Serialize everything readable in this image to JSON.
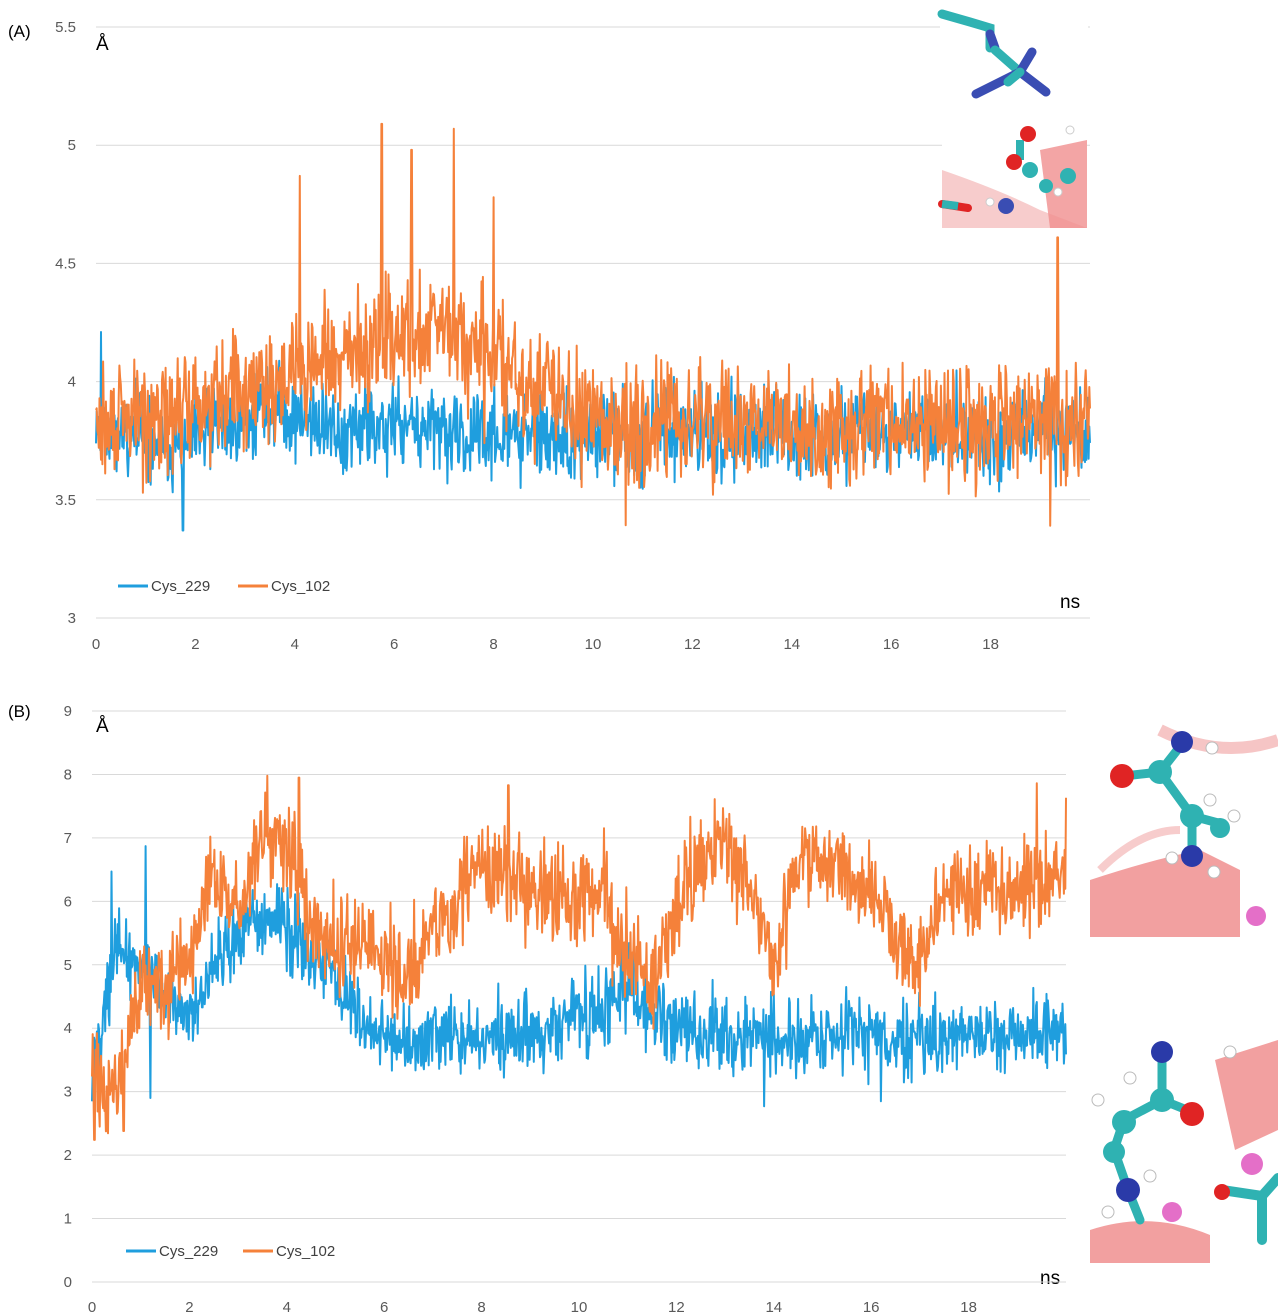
{
  "colors": {
    "cys_229": "#1f9ede",
    "cys_102": "#f5813a",
    "grid": "#d9d9d9",
    "tick": "#595959"
  },
  "chart_data": [
    {
      "type": "line",
      "panel_label": "(A)",
      "ylabel": "Å",
      "xlabel": "ns",
      "ylim": [
        3,
        5.5
      ],
      "xlim": [
        0,
        20
      ],
      "yticks": [
        "3",
        "3.5",
        "4",
        "4.5",
        "5",
        "5.5"
      ],
      "xticks": [
        "0",
        "2",
        "4",
        "6",
        "8",
        "10",
        "12",
        "14",
        "16",
        "18"
      ],
      "grid": "horizontal",
      "legend": "bottom-left",
      "x": [
        0,
        0.5,
        1,
        1.5,
        2,
        2.5,
        3,
        3.5,
        4,
        4.5,
        5,
        5.5,
        6,
        6.5,
        7,
        7.5,
        8,
        8.5,
        9,
        9.5,
        10,
        10.5,
        11,
        11.5,
        12,
        12.5,
        13,
        13.5,
        14,
        14.5,
        15,
        15.5,
        16,
        16.5,
        17,
        17.5,
        18,
        18.5,
        19,
        19.5,
        20
      ],
      "series": [
        {
          "name": "Cys_229",
          "color_key": "cys_229",
          "values": [
            3.85,
            3.8,
            3.75,
            3.72,
            3.75,
            3.8,
            3.85,
            3.9,
            3.85,
            3.8,
            3.78,
            3.8,
            3.82,
            3.8,
            3.78,
            3.75,
            3.78,
            3.78,
            3.76,
            3.75,
            3.76,
            3.76,
            3.78,
            3.8,
            3.78,
            3.78,
            3.78,
            3.8,
            3.76,
            3.76,
            3.78,
            3.8,
            3.8,
            3.78,
            3.8,
            3.8,
            3.75,
            3.76,
            3.8,
            3.78,
            3.78
          ],
          "noise": 0.11,
          "min": 3.37,
          "max": 4.21
        },
        {
          "name": "Cys_102",
          "color_key": "cys_102",
          "values": [
            3.8,
            3.82,
            3.85,
            3.85,
            3.9,
            3.95,
            3.98,
            4.0,
            4.02,
            4.05,
            4.1,
            4.15,
            4.2,
            4.22,
            4.2,
            4.15,
            4.1,
            4.0,
            3.95,
            3.88,
            3.85,
            3.83,
            3.82,
            3.83,
            3.84,
            3.84,
            3.83,
            3.82,
            3.8,
            3.8,
            3.8,
            3.82,
            3.82,
            3.8,
            3.82,
            3.82,
            3.83,
            3.85,
            3.85,
            3.82,
            3.8
          ],
          "noise": 0.15,
          "min": 3.39,
          "max": 5.09
        }
      ],
      "peaks": [
        {
          "series": 1,
          "x": 4.1,
          "y": 4.87
        },
        {
          "series": 1,
          "x": 5.75,
          "y": 5.09
        },
        {
          "series": 1,
          "x": 6.35,
          "y": 4.98
        },
        {
          "series": 1,
          "x": 7.2,
          "y": 5.07
        },
        {
          "series": 1,
          "x": 8.0,
          "y": 4.78
        },
        {
          "series": 1,
          "x": 19.35,
          "y": 4.61
        },
        {
          "series": 1,
          "x": 19.2,
          "y": 3.39
        },
        {
          "series": 0,
          "x": 1.75,
          "y": 3.37
        },
        {
          "series": 0,
          "x": 0.1,
          "y": 4.21
        }
      ]
    },
    {
      "type": "line",
      "panel_label": "(B)",
      "ylabel": "Å",
      "xlabel": "ns",
      "ylim": [
        0,
        9
      ],
      "xlim": [
        0,
        20
      ],
      "yticks": [
        "0",
        "1",
        "2",
        "3",
        "4",
        "5",
        "6",
        "7",
        "8",
        "9"
      ],
      "xticks": [
        "0",
        "2",
        "4",
        "6",
        "8",
        "10",
        "12",
        "14",
        "16",
        "18"
      ],
      "grid": "horizontal",
      "legend": "bottom-left",
      "x": [
        0,
        0.5,
        1,
        1.5,
        2,
        2.5,
        3,
        3.5,
        4,
        4.5,
        5,
        5.5,
        6,
        6.5,
        7,
        7.5,
        8,
        8.5,
        9,
        9.5,
        10,
        10.5,
        11,
        11.5,
        12,
        12.5,
        13,
        13.5,
        14,
        14.5,
        15,
        15.5,
        16,
        16.5,
        17,
        17.5,
        18,
        18.5,
        19,
        19.5,
        20
      ],
      "series": [
        {
          "name": "Cys_229",
          "color_key": "cys_229",
          "values": [
            3.3,
            5.2,
            5.1,
            4.5,
            4.2,
            5.0,
            5.5,
            5.8,
            5.6,
            5.2,
            4.9,
            4.0,
            3.9,
            3.8,
            3.85,
            3.9,
            3.9,
            3.85,
            3.9,
            4.0,
            4.2,
            4.3,
            4.6,
            4.2,
            4.0,
            3.9,
            3.8,
            3.9,
            3.8,
            3.8,
            3.9,
            4.0,
            3.9,
            3.8,
            3.85,
            3.85,
            3.9,
            3.85,
            3.9,
            3.9,
            3.9
          ],
          "noise": 0.35,
          "min": 2.77,
          "max": 6.87
        },
        {
          "name": "Cys_102",
          "color_key": "cys_102",
          "values": [
            3.3,
            2.9,
            4.8,
            4.6,
            5.0,
            6.5,
            5.8,
            6.8,
            7.0,
            5.8,
            5.4,
            5.3,
            5.0,
            4.7,
            5.5,
            6.0,
            6.5,
            6.4,
            6.2,
            6.1,
            6.1,
            6.3,
            5.0,
            4.8,
            6.0,
            6.7,
            6.9,
            6.3,
            5.1,
            6.6,
            6.7,
            6.4,
            6.2,
            5.3,
            4.9,
            6.2,
            6.1,
            6.3,
            6.2,
            6.4,
            6.5
          ],
          "noise": 0.45,
          "min": 2.24,
          "max": 7.98
        }
      ],
      "peaks": [
        {
          "series": 1,
          "x": 0.05,
          "y": 2.24
        },
        {
          "series": 1,
          "x": 0.65,
          "y": 2.38
        },
        {
          "series": 1,
          "x": 3.6,
          "y": 7.98
        },
        {
          "series": 1,
          "x": 4.25,
          "y": 7.95
        },
        {
          "series": 1,
          "x": 8.55,
          "y": 7.83
        },
        {
          "series": 1,
          "x": 19.4,
          "y": 7.86
        },
        {
          "series": 0,
          "x": 1.1,
          "y": 6.87
        },
        {
          "series": 0,
          "x": 0.4,
          "y": 6.47
        },
        {
          "series": 0,
          "x": 13.8,
          "y": 2.77
        },
        {
          "series": 0,
          "x": 16.2,
          "y": 2.85
        },
        {
          "series": 0,
          "x": 1.2,
          "y": 2.9
        }
      ]
    }
  ]
}
